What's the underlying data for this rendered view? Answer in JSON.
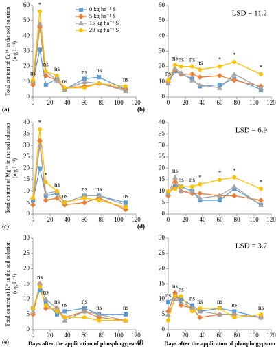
{
  "chart_data": [
    {
      "type": "line",
      "panel_label": "(a)",
      "ylabel": [
        "Total content of Ca²⁺ in the soil solution",
        "(mg L⁻¹)"
      ],
      "x": [
        0,
        8,
        15,
        28,
        37,
        60,
        77,
        108
      ],
      "xlim": [
        0,
        120
      ],
      "xticks": [
        0,
        20,
        40,
        60,
        80,
        100,
        120
      ],
      "ylim": [
        0,
        60
      ],
      "yticks": [
        0,
        10,
        20,
        30,
        40,
        50,
        60
      ],
      "point_labels": [
        "ns",
        "*",
        "ns",
        "ns",
        "ns",
        "ns",
        "ns",
        "ns"
      ],
      "series": [
        {
          "name": "0 kg ha⁻¹ S",
          "color": "#5b9bd5",
          "marker": "square",
          "values": [
            10,
            31,
            8,
            12,
            5,
            12,
            13,
            5
          ]
        },
        {
          "name": "5 kg ha⁻¹ S",
          "color": "#ed7d31",
          "marker": "diamond",
          "values": [
            8,
            46,
            14,
            11,
            6,
            7,
            9,
            5
          ]
        },
        {
          "name": "15 kg ha⁻¹ S",
          "color": "#a5a5a5",
          "marker": "triangle",
          "values": [
            11,
            48,
            17,
            11,
            5,
            10,
            9,
            4
          ]
        },
        {
          "name": "20 kg ha⁻¹ S",
          "color": "#ffc000",
          "marker": "circle",
          "values": [
            11,
            56,
            17,
            14,
            6,
            6,
            9,
            7
          ]
        }
      ]
    },
    {
      "type": "line",
      "panel_label": "(b)",
      "annotation": "LSD = 11.2",
      "x": [
        0,
        8,
        15,
        28,
        37,
        60,
        77,
        108
      ],
      "xlim": [
        0,
        120
      ],
      "xticks": [
        0,
        20,
        40,
        60,
        80,
        100,
        120
      ],
      "ylim": [
        0,
        60
      ],
      "yticks": [
        0,
        10,
        20,
        30,
        40,
        50,
        60
      ],
      "point_labels": [
        "ns",
        "ns",
        "ns",
        "ns",
        "ns",
        "*",
        "*",
        "*"
      ],
      "series": [
        {
          "color": "#5b9bd5",
          "marker": "square",
          "values": [
            9,
            17,
            15,
            12,
            7,
            8,
            12,
            5
          ]
        },
        {
          "color": "#ed7d31",
          "marker": "diamond",
          "values": [
            10,
            18,
            15,
            15,
            13,
            14,
            11,
            7
          ]
        },
        {
          "color": "#a5a5a5",
          "marker": "triangle",
          "values": [
            9,
            19,
            16,
            11,
            8,
            6,
            15,
            6
          ]
        },
        {
          "color": "#ffc000",
          "marker": "circle",
          "values": [
            11,
            21,
            20,
            20,
            18,
            20,
            23,
            15
          ]
        }
      ]
    },
    {
      "type": "line",
      "panel_label": "(c)",
      "ylabel": [
        "Total content of Mg²⁺ in the soil solution",
        "(mg L⁻¹)"
      ],
      "x": [
        0,
        8,
        15,
        28,
        37,
        60,
        77,
        108
      ],
      "xlim": [
        0,
        120
      ],
      "xticks": [
        0,
        20,
        40,
        60,
        80,
        100,
        120
      ],
      "ylim": [
        0,
        40
      ],
      "yticks": [
        0,
        5,
        10,
        15,
        20,
        25,
        30,
        35,
        40
      ],
      "point_labels": [
        null,
        "*",
        "*",
        "ns",
        "ns",
        "ns",
        "ns",
        "ns"
      ],
      "series": [
        {
          "color": "#5b9bd5",
          "marker": "square",
          "values": [
            6,
            20,
            8,
            9,
            5,
            8,
            8,
            5
          ]
        },
        {
          "color": "#ed7d31",
          "marker": "diamond",
          "values": [
            4,
            32,
            6,
            7,
            4,
            5,
            7,
            2
          ]
        },
        {
          "color": "#a5a5a5",
          "marker": "triangle",
          "values": [
            7,
            30,
            9,
            10,
            5,
            8,
            8,
            4
          ]
        },
        {
          "color": "#ffc000",
          "marker": "circle",
          "values": [
            7,
            37,
            14,
            10,
            5,
            7,
            6,
            3
          ]
        }
      ]
    },
    {
      "type": "line",
      "panel_label": "(d)",
      "annotation": "LSD = 6.9",
      "x": [
        0,
        8,
        15,
        28,
        37,
        60,
        77,
        108
      ],
      "xlim": [
        0,
        120
      ],
      "xticks": [
        0,
        20,
        40,
        60,
        80,
        100,
        120
      ],
      "ylim": [
        0,
        40
      ],
      "yticks": [
        0,
        5,
        10,
        15,
        20,
        25,
        30,
        35,
        40
      ],
      "point_labels": [
        null,
        "ns",
        "ns",
        "ns",
        "*",
        "*",
        "*",
        "*"
      ],
      "series": [
        {
          "color": "#5b9bd5",
          "marker": "square",
          "values": [
            9,
            12,
            12,
            10,
            6,
            6,
            11,
            4
          ]
        },
        {
          "color": "#ed7d31",
          "marker": "diamond",
          "values": [
            8,
            14,
            10,
            9,
            9,
            8,
            8,
            6
          ]
        },
        {
          "color": "#a5a5a5",
          "marker": "triangle",
          "values": [
            9,
            16,
            10,
            10,
            7,
            8,
            12,
            4
          ]
        },
        {
          "color": "#ffc000",
          "marker": "circle",
          "values": [
            10,
            11,
            12,
            12,
            13,
            15,
            16,
            11
          ]
        }
      ]
    },
    {
      "type": "line",
      "panel_label": "(e)",
      "ylabel": [
        "Total content of K⁺ in the soil solution",
        "(mg L⁻¹)"
      ],
      "xlabel": "Days after the application of phosphogypsum",
      "x": [
        0,
        8,
        15,
        28,
        37,
        60,
        77,
        108
      ],
      "xlim": [
        0,
        120
      ],
      "xticks": [
        0,
        20,
        40,
        60,
        80,
        100,
        120
      ],
      "ylim": [
        0,
        30
      ],
      "yticks": [
        0,
        5,
        10,
        15,
        20,
        25,
        30
      ],
      "point_labels": [
        null,
        "ns",
        "ns",
        "ns",
        "ns",
        "ns",
        "ns",
        "ns"
      ],
      "series": [
        {
          "color": "#5b9bd5",
          "marker": "square",
          "values": [
            7,
            13,
            9,
            5,
            6,
            7,
            5,
            5
          ]
        },
        {
          "color": "#ed7d31",
          "marker": "diamond",
          "values": [
            5,
            15,
            7,
            7,
            4,
            6,
            4,
            3
          ]
        },
        {
          "color": "#a5a5a5",
          "marker": "triangle",
          "values": [
            6,
            15,
            10,
            7,
            3,
            6,
            5,
            3
          ]
        },
        {
          "color": "#ffc000",
          "marker": "circle",
          "values": [
            7,
            14,
            8,
            6,
            4,
            4,
            3,
            3
          ]
        }
      ]
    },
    {
      "type": "line",
      "panel_label": "(f)",
      "annotation": "LSD = 3.7",
      "xlabel": "Days after the applicaton of phosphogypsum",
      "x": [
        0,
        8,
        15,
        28,
        37,
        60,
        77,
        108
      ],
      "xlim": [
        0,
        120
      ],
      "xticks": [
        0,
        20,
        40,
        60,
        80,
        100,
        120
      ],
      "ylim": [
        0,
        30
      ],
      "yticks": [
        0,
        5,
        10,
        15,
        20,
        25,
        30
      ],
      "point_labels": [
        "ns",
        "ns",
        "ns",
        "ns",
        "ns",
        "ns",
        "ns",
        "ns"
      ],
      "series": [
        {
          "color": "#5b9bd5",
          "marker": "square",
          "values": [
            9,
            11,
            10,
            8,
            6,
            7,
            6,
            4
          ]
        },
        {
          "color": "#ed7d31",
          "marker": "diamond",
          "values": [
            6,
            12,
            8,
            7,
            4,
            5,
            5,
            4
          ]
        },
        {
          "color": "#a5a5a5",
          "marker": "triangle",
          "values": [
            5,
            10,
            9,
            7,
            6,
            5,
            5,
            4
          ]
        },
        {
          "color": "#ffc000",
          "marker": "circle",
          "values": [
            3,
            11,
            11,
            6,
            7,
            7,
            4,
            5
          ]
        }
      ]
    }
  ]
}
